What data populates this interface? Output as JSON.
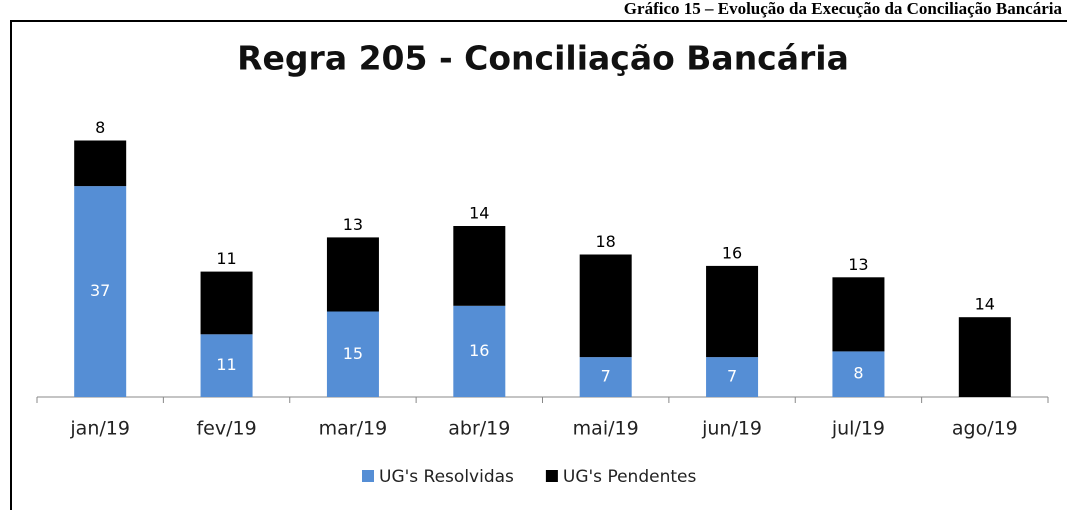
{
  "caption": "Gráfico 15 – Evolução da Execução da Conciliação Bancária",
  "chart_data": {
    "type": "stacked_bar",
    "title": "Regra 205 - Conciliação Bancária",
    "categories": [
      "jan/19",
      "fev/19",
      "mar/19",
      "abr/19",
      "mai/19",
      "jun/19",
      "jul/19",
      "ago/19"
    ],
    "series": [
      {
        "name": "UG's Resolvidas",
        "color": "#558ed5",
        "values": [
          37,
          11,
          15,
          16,
          7,
          7,
          8,
          0
        ]
      },
      {
        "name": "UG's Pendentes",
        "color": "#000000",
        "values": [
          8,
          11,
          13,
          14,
          18,
          16,
          13,
          14
        ]
      }
    ],
    "ylim": [
      0,
      50
    ],
    "legend": "bottom"
  }
}
